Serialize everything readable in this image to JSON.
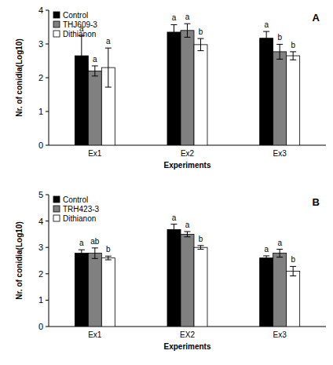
{
  "chart_data": [
    {
      "type": "bar",
      "title": "A",
      "x_label": "Experiments",
      "y_label": "Nr. of conidia(Log10)",
      "categories": [
        "Ex1",
        "Ex2",
        "Ex3"
      ],
      "series": [
        {
          "name": "Control",
          "color": "#000000",
          "values": [
            2.65,
            3.35,
            3.17
          ],
          "errors": [
            0.6,
            0.22,
            0.2
          ],
          "annotations": [
            "a",
            "a",
            "a"
          ]
        },
        {
          "name": "THJ609-3",
          "color": "#808080",
          "values": [
            2.2,
            3.4,
            2.77
          ],
          "errors": [
            0.15,
            0.2,
            0.22
          ],
          "annotations": [
            "a",
            "a",
            "b"
          ]
        },
        {
          "name": "Dithianon",
          "color": "#ffffff",
          "values": [
            2.3,
            2.98,
            2.65
          ],
          "errors": [
            0.58,
            0.18,
            0.12
          ],
          "annotations": [
            "a",
            "b",
            "b"
          ]
        }
      ],
      "ylim": [
        0,
        4
      ],
      "yticks": [
        0,
        1,
        2,
        3,
        4
      ],
      "grid": false,
      "legend": "top-left"
    },
    {
      "type": "bar",
      "title": "B",
      "x_label": "Experiments",
      "y_label": "Nr. of conidia(Log10)",
      "categories": [
        "Ex1",
        "EX2",
        "Ex3"
      ],
      "series": [
        {
          "name": "Control",
          "color": "#000000",
          "values": [
            2.78,
            3.68,
            2.6
          ],
          "errors": [
            0.13,
            0.2,
            0.08
          ],
          "annotations": [
            "a",
            "a",
            "a"
          ]
        },
        {
          "name": "TRH423-3",
          "color": "#808080",
          "values": [
            2.78,
            3.5,
            2.78
          ],
          "errors": [
            0.2,
            0.1,
            0.15
          ],
          "annotations": [
            "ab",
            "a",
            "a"
          ]
        },
        {
          "name": "Dithianon",
          "color": "#ffffff",
          "values": [
            2.6,
            3.0,
            2.1
          ],
          "errors": [
            0.07,
            0.07,
            0.18
          ],
          "annotations": [
            "b",
            "b",
            "b"
          ]
        }
      ],
      "ylim": [
        0,
        5
      ],
      "yticks": [
        0,
        1,
        2,
        3,
        4,
        5
      ],
      "grid": false,
      "legend": "top-left"
    }
  ]
}
